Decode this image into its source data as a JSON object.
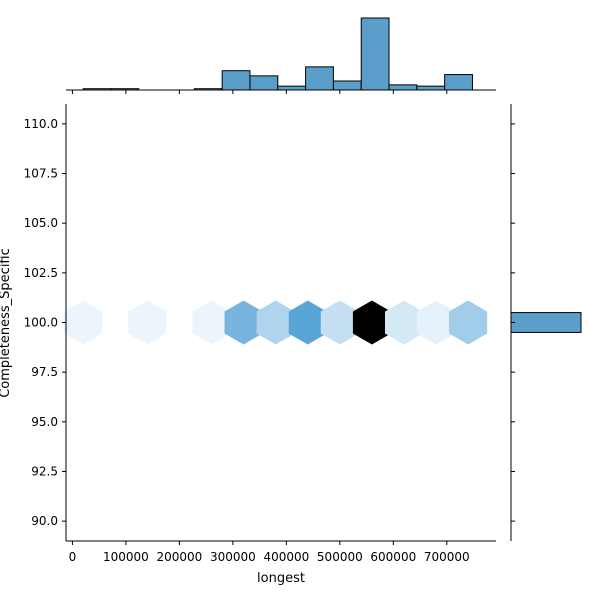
{
  "chart_data": {
    "type": "hexbin-jointplot",
    "xlabel": "longest",
    "ylabel": "Completeness_Specific",
    "xlim": [
      -12000,
      792000
    ],
    "ylim": [
      89.0,
      111.0
    ],
    "x_ticks": [
      0,
      100000,
      200000,
      300000,
      400000,
      500000,
      600000,
      700000
    ],
    "x_tick_labels": [
      "0",
      "100000",
      "200000",
      "300000",
      "400000",
      "500000",
      "600000",
      "700000"
    ],
    "y_ticks": [
      90.0,
      92.5,
      95.0,
      97.5,
      100.0,
      102.5,
      105.0,
      107.5,
      110.0
    ],
    "y_tick_labels": [
      "90.0",
      "92.5",
      "95.0",
      "97.5",
      "100.0",
      "102.5",
      "105.0",
      "107.5",
      "110.0"
    ],
    "hexbins": [
      {
        "x": 20000,
        "y": 100.0,
        "density": 0.04
      },
      {
        "x": 140000,
        "y": 100.0,
        "density": 0.04
      },
      {
        "x": 260000,
        "y": 100.0,
        "density": 0.04
      },
      {
        "x": 320000,
        "y": 100.0,
        "density": 0.45
      },
      {
        "x": 380000,
        "y": 100.0,
        "density": 0.25
      },
      {
        "x": 440000,
        "y": 100.0,
        "density": 0.55
      },
      {
        "x": 500000,
        "y": 100.0,
        "density": 0.18
      },
      {
        "x": 560000,
        "y": 100.0,
        "density": 1.0
      },
      {
        "x": 620000,
        "y": 100.0,
        "density": 0.12
      },
      {
        "x": 680000,
        "y": 100.0,
        "density": 0.06
      },
      {
        "x": 740000,
        "y": 100.0,
        "density": 0.3
      }
    ],
    "marginal_x_hist": {
      "bin_edges": [
        20000,
        72000,
        124000,
        176000,
        228000,
        280000,
        332000,
        384000,
        436000,
        488000,
        540000,
        592000,
        644000,
        696000,
        748000
      ],
      "counts": [
        1,
        1,
        0,
        0,
        1,
        15,
        11,
        3,
        18,
        7,
        56,
        4,
        3,
        12
      ]
    },
    "marginal_y_hist": {
      "bin_edges": [
        99.5,
        100.5
      ],
      "counts": [
        132
      ]
    },
    "colors": {
      "hist_fill": "#5b9ec9",
      "hist_edge": "#000000",
      "hex_low": "#f7fbff",
      "hex_mid": "#5aa5d8",
      "hex_high": "#000000"
    }
  }
}
